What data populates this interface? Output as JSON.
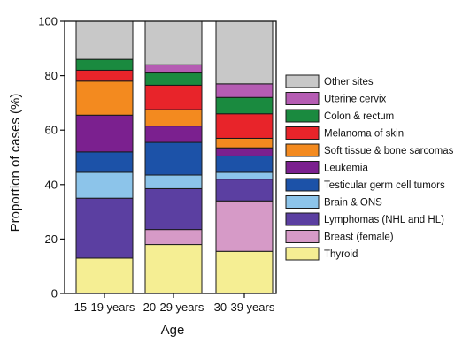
{
  "chart_data": {
    "type": "bar",
    "stacked": true,
    "xlabel": "Age",
    "ylabel": "Proportion of cases (%)",
    "ylim": [
      0,
      100
    ],
    "yticks": [
      0,
      20,
      40,
      60,
      80,
      100
    ],
    "categories": [
      "15-19 years",
      "20-29 years",
      "30-39 years"
    ],
    "series": [
      {
        "name": "Thyroid",
        "color": "#f5ee93",
        "values": [
          13,
          18,
          15.5
        ]
      },
      {
        "name": "Breast (female)",
        "color": "#d69ac7",
        "values": [
          0,
          5.5,
          18.5
        ]
      },
      {
        "name": "Lymphomas (NHL and HL)",
        "color": "#5b3fa1",
        "values": [
          22,
          15,
          8
        ]
      },
      {
        "name": "Brain & ONS",
        "color": "#8cc4ea",
        "values": [
          9.5,
          5,
          2.5
        ]
      },
      {
        "name": "Testicular germ cell tumors",
        "color": "#1c52a8",
        "values": [
          7.5,
          12,
          6
        ]
      },
      {
        "name": "Leukemia",
        "color": "#7b208f",
        "values": [
          13.5,
          6,
          3
        ]
      },
      {
        "name": "Soft tissue & bone sarcomas",
        "color": "#f38a1f",
        "values": [
          12.5,
          6,
          3.5
        ]
      },
      {
        "name": "Melanoma of skin",
        "color": "#e8242a",
        "values": [
          4,
          9,
          9
        ]
      },
      {
        "name": "Colon & rectum",
        "color": "#1a8a3f",
        "values": [
          4,
          4.5,
          6
        ]
      },
      {
        "name": "Uterine cervix",
        "color": "#b55cb3",
        "values": [
          0,
          3,
          5
        ]
      },
      {
        "name": "Other sites",
        "color": "#c8c8c8",
        "values": [
          14,
          16,
          23
        ]
      }
    ],
    "legend_position": "right",
    "grid": false
  }
}
